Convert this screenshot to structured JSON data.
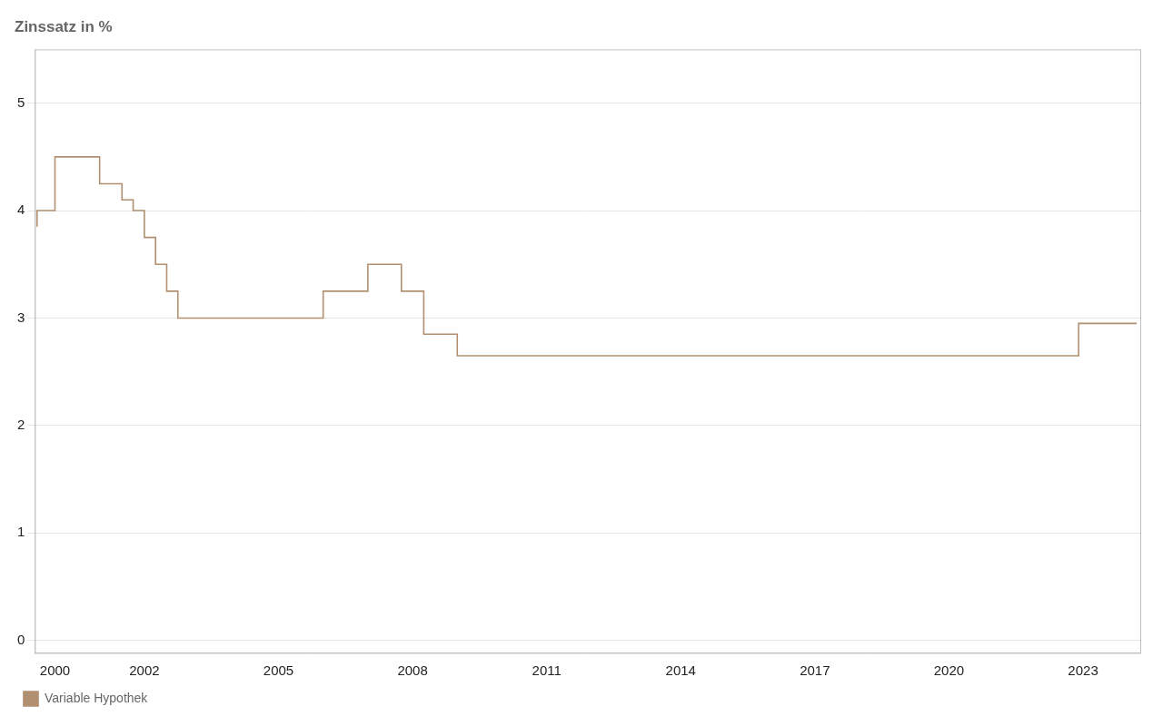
{
  "chart_data": {
    "type": "line",
    "title": "Zinssatz in %",
    "x": [
      1999.6,
      2000.0,
      2000.5,
      2001.0,
      2001.5,
      2001.75,
      2002.0,
      2002.25,
      2002.5,
      2002.75,
      2003.0,
      2003.25,
      2004.0,
      2005.0,
      2006.0,
      2006.5,
      2007.0,
      2007.5,
      2007.75,
      2008.0,
      2008.25,
      2008.5,
      2008.75,
      2009.0,
      2009.25,
      2009.5,
      2009.75,
      2010.0,
      2011.5,
      2012.5,
      2022.9,
      2023.2,
      2024.2
    ],
    "series": [
      {
        "name": "Variable Hypothek",
        "color": "#b09070",
        "line_style": "steps",
        "values": [
          3.85,
          4.0,
          4.5,
          4.5,
          4.25,
          4.1,
          4.0,
          3.75,
          3.5,
          3.25,
          3.0,
          3.0,
          3.0,
          3.0,
          3.0,
          3.25,
          3.25,
          3.5,
          3.5,
          3.25,
          3.25,
          2.85,
          2.85,
          2.85,
          2.65,
          2.65,
          2.65,
          2.65,
          2.65,
          2.65,
          2.65,
          2.95,
          2.95
        ]
      }
    ],
    "xlim": [
      1999.55,
      2024.3
    ],
    "xticks": [
      2000,
      2002,
      2005,
      2008,
      2011,
      2014,
      2017,
      2020,
      2023
    ],
    "ylim": [
      -0.12,
      5.5
    ],
    "yticks": [
      0,
      1,
      2,
      3,
      4,
      5
    ],
    "grid": "y",
    "legend": "lower left"
  }
}
